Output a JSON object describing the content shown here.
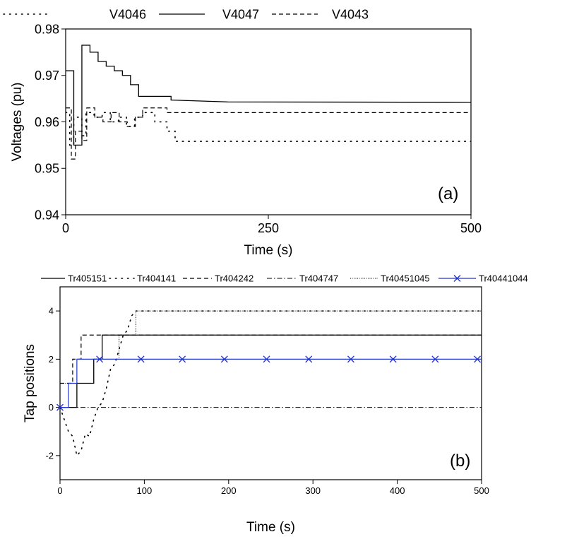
{
  "chart_data": [
    {
      "type": "line",
      "panel_label": "(a)",
      "xlabel": "Time (s)",
      "ylabel": "Voltages (pu)",
      "xlim": [
        0,
        500
      ],
      "ylim": [
        0.94,
        0.98
      ],
      "xticks": [
        0,
        250,
        500
      ],
      "yticks": [
        0.94,
        0.95,
        0.96,
        0.97,
        0.98
      ],
      "xtick_labels": [
        "0",
        "250",
        "500"
      ],
      "ytick_labels": [
        "0.94",
        "0.95",
        "0.96",
        "0.97",
        "0.98"
      ],
      "grid": false,
      "legend_position": "top",
      "series": [
        {
          "name": "V4046",
          "style": "dotted",
          "x": [
            0,
            5,
            5,
            10,
            10,
            20,
            20,
            25,
            25,
            35,
            35,
            45,
            45,
            55,
            55,
            65,
            65,
            75,
            75,
            85,
            85,
            95,
            95,
            110,
            110,
            125,
            125,
            135,
            135,
            500
          ],
          "y": [
            0.962,
            0.962,
            0.955,
            0.955,
            0.961,
            0.961,
            0.957,
            0.957,
            0.962,
            0.962,
            0.961,
            0.961,
            0.962,
            0.962,
            0.96,
            0.96,
            0.961,
            0.961,
            0.959,
            0.959,
            0.961,
            0.961,
            0.962,
            0.962,
            0.96,
            0.96,
            0.958,
            0.958,
            0.9558,
            0.9558
          ]
        },
        {
          "name": "V4047",
          "style": "solid",
          "x": [
            0,
            10,
            10,
            20,
            20,
            30,
            30,
            40,
            40,
            50,
            50,
            60,
            60,
            70,
            70,
            80,
            80,
            90,
            90,
            130,
            130,
            200,
            500
          ],
          "y": [
            0.971,
            0.971,
            0.955,
            0.955,
            0.9765,
            0.9765,
            0.975,
            0.975,
            0.973,
            0.973,
            0.972,
            0.972,
            0.971,
            0.971,
            0.97,
            0.97,
            0.968,
            0.968,
            0.9655,
            0.9655,
            0.9647,
            0.9643,
            0.9642
          ]
        },
        {
          "name": "V4043",
          "style": "dashed",
          "x": [
            0,
            7,
            7,
            12,
            12,
            20,
            20,
            26,
            26,
            36,
            36,
            46,
            46,
            56,
            56,
            66,
            66,
            76,
            76,
            86,
            86,
            95,
            95,
            125,
            125,
            500
          ],
          "y": [
            0.963,
            0.963,
            0.952,
            0.952,
            0.958,
            0.958,
            0.956,
            0.956,
            0.963,
            0.963,
            0.961,
            0.961,
            0.96,
            0.96,
            0.962,
            0.962,
            0.96,
            0.96,
            0.959,
            0.959,
            0.961,
            0.961,
            0.963,
            0.963,
            0.962,
            0.962
          ]
        }
      ]
    },
    {
      "type": "line",
      "panel_label": "(b)",
      "xlabel": "Time (s)",
      "ylabel": "Tap positions",
      "xlim": [
        0,
        500
      ],
      "ylim": [
        -3,
        5
      ],
      "xticks": [
        0,
        100,
        200,
        300,
        400,
        500
      ],
      "yticks": [
        -2,
        0,
        2,
        4
      ],
      "xtick_labels": [
        "0",
        "100",
        "200",
        "300",
        "400",
        "500"
      ],
      "ytick_labels": [
        "-2",
        "0",
        "2",
        "4"
      ],
      "grid": false,
      "legend_position": "top",
      "series": [
        {
          "name": "Tr405151",
          "style": "solid",
          "x": [
            0,
            20,
            20,
            40,
            40,
            50,
            50,
            500
          ],
          "y": [
            0,
            0,
            1,
            1,
            2,
            2,
            3,
            3
          ]
        },
        {
          "name": "Tr404141",
          "style": "dotted",
          "x": [
            0,
            10,
            15,
            20,
            25,
            30,
            35,
            40,
            45,
            50,
            55,
            60,
            65,
            70,
            75,
            80,
            85,
            90,
            500
          ],
          "y": [
            0,
            -1,
            -1.2,
            -2,
            -1.8,
            -1.1,
            -1.2,
            -0.5,
            0,
            0.2,
            0.8,
            1.6,
            1.8,
            2.4,
            3,
            3.2,
            3.8,
            4,
            4
          ]
        },
        {
          "name": "Tr404242",
          "style": "dashed",
          "x": [
            0,
            15,
            15,
            25,
            25,
            35,
            35,
            500
          ],
          "y": [
            1,
            1,
            2,
            2,
            3,
            3,
            3,
            3
          ]
        },
        {
          "name": "Tr404747",
          "style": "dashdot",
          "x": [
            0,
            500
          ],
          "y": [
            0,
            0
          ]
        },
        {
          "name": "Tr40451045",
          "style": "dense-dotted",
          "x": [
            0,
            30,
            30,
            40,
            40,
            70,
            70,
            80,
            80,
            90,
            90,
            500
          ],
          "y": [
            1,
            1,
            1,
            1,
            2,
            2,
            3,
            3,
            3,
            3,
            4,
            4
          ]
        },
        {
          "name": "Tr40441044",
          "style": "solid-x",
          "color": "#2233cc",
          "x": [
            0,
            10,
            10,
            20,
            20,
            30,
            30,
            500
          ],
          "y": [
            0,
            0,
            1,
            1,
            2,
            2,
            2,
            2
          ],
          "marker_x": [
            0,
            47,
            96,
            145,
            195,
            245,
            295,
            345,
            395,
            445,
            495
          ],
          "marker_y": [
            0,
            2,
            2,
            2,
            2,
            2,
            2,
            2,
            2,
            2,
            2
          ]
        }
      ]
    }
  ]
}
